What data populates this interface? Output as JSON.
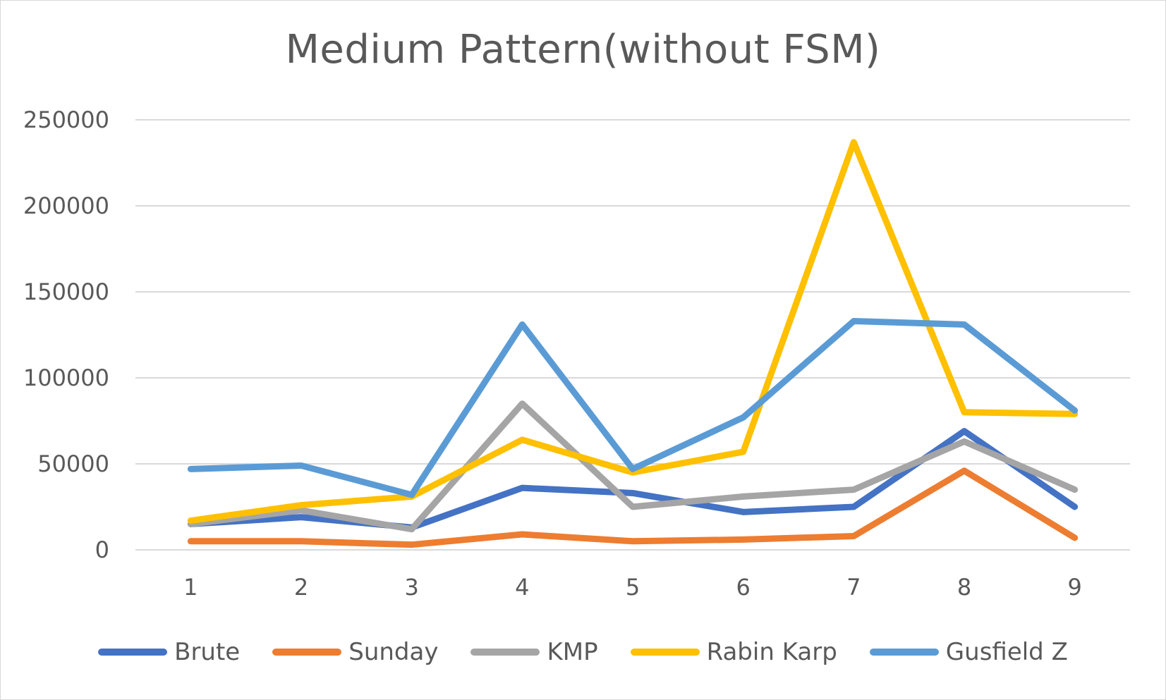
{
  "chart_data": {
    "type": "line",
    "title": "Medium Pattern(without FSM)",
    "xlabel": "",
    "ylabel": "",
    "categories": [
      "1",
      "2",
      "3",
      "4",
      "5",
      "6",
      "7",
      "8",
      "9"
    ],
    "ylim": [
      0,
      250000
    ],
    "yticks": [
      "0",
      "50000",
      "100000",
      "150000",
      "200000",
      "250000"
    ],
    "grid": true,
    "legend_position": "bottom",
    "series": [
      {
        "name": "Brute",
        "color": "#4472c4",
        "values": [
          15000,
          19000,
          13000,
          36000,
          33000,
          22000,
          25000,
          69000,
          25000
        ]
      },
      {
        "name": "Sunday",
        "color": "#ed7d31",
        "values": [
          5000,
          5000,
          3000,
          9000,
          5000,
          6000,
          8000,
          46000,
          7000
        ]
      },
      {
        "name": "KMP",
        "color": "#a5a5a5",
        "values": [
          15000,
          23000,
          12000,
          85000,
          25000,
          31000,
          35000,
          63000,
          35000
        ]
      },
      {
        "name": "Rabin Karp",
        "color": "#ffc000",
        "values": [
          17000,
          26000,
          31000,
          64000,
          45000,
          57000,
          237000,
          80000,
          79000
        ]
      },
      {
        "name": "Gusfield Z",
        "color": "#5b9bd5",
        "values": [
          47000,
          49000,
          32000,
          131000,
          47000,
          77000,
          133000,
          131000,
          81000
        ]
      }
    ]
  }
}
